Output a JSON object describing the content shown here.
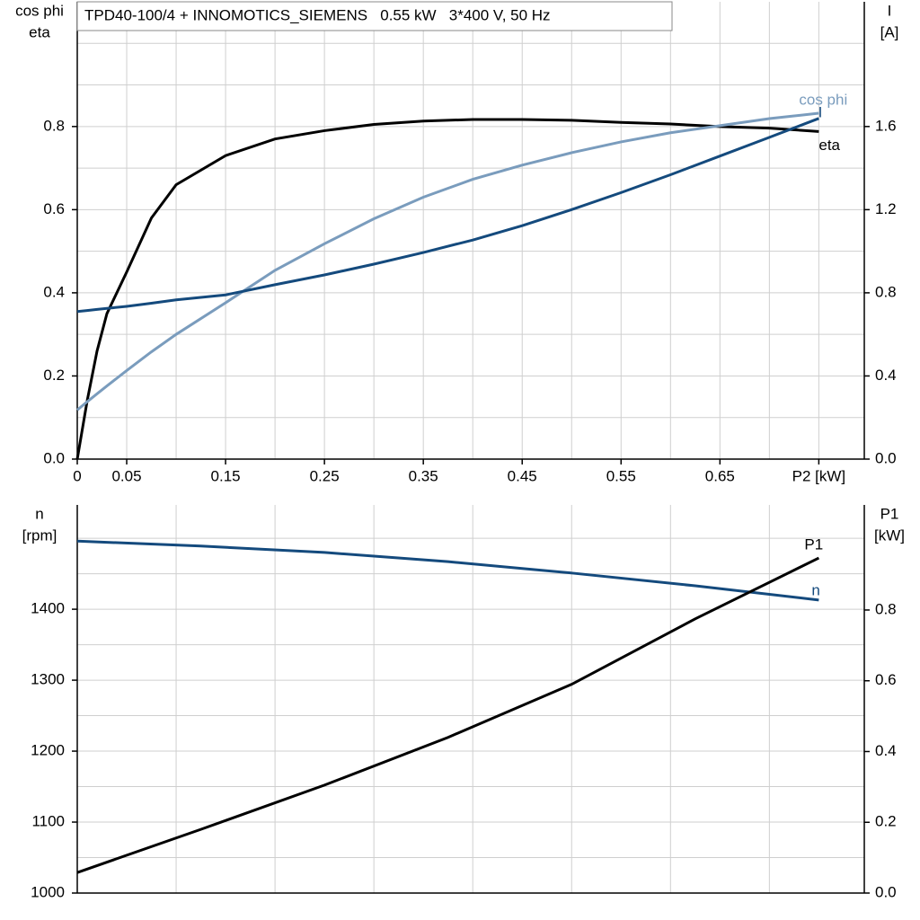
{
  "chart_data": [
    {
      "type": "line",
      "title": "TPD40-100/4 + INNOMOTICS_SIEMENS   0.55 kW   3*400 V, 50 Hz",
      "ylabel": [
        "cos phi",
        "eta"
      ],
      "y2label": [
        "I",
        "[A]"
      ],
      "x": [
        0,
        0.01,
        0.02,
        0.03,
        0.05,
        0.075,
        0.1,
        0.15,
        0.2,
        0.25,
        0.3,
        0.35,
        0.4,
        0.45,
        0.5,
        0.55,
        0.6,
        0.65,
        0.7,
        0.75
      ],
      "xlim": [
        0,
        0.796
      ],
      "xticks": [
        0,
        0.05,
        0.15,
        0.25,
        0.35,
        0.45,
        0.55,
        0.65,
        {
          "value": 0.75,
          "label": "P2 [kW]"
        }
      ],
      "xgrid": [
        0.05,
        0.1,
        0.15,
        0.2,
        0.25,
        0.3,
        0.35,
        0.4,
        0.45,
        0.5,
        0.55,
        0.6,
        0.65,
        0.7,
        0.75
      ],
      "ylim": [
        0,
        1.1
      ],
      "yticks": [
        {
          "value": 0,
          "label": "0.0"
        },
        0.2,
        0.4,
        0.6,
        0.8
      ],
      "ygrid": [
        0.1,
        0.2,
        0.3,
        0.4,
        0.5,
        0.6,
        0.7,
        0.8,
        0.9,
        1.0
      ],
      "y2lim": [
        0,
        2.2
      ],
      "y2ticks": [
        {
          "value": 0,
          "label": "0.0"
        },
        0.4,
        0.8,
        1.2,
        1.6
      ],
      "series": [
        {
          "name": "eta",
          "color": "#000000",
          "values": [
            0,
            0.14,
            0.26,
            0.35,
            0.45,
            0.58,
            0.66,
            0.73,
            0.77,
            0.79,
            0.805,
            0.813,
            0.817,
            0.817,
            0.815,
            0.81,
            0.806,
            0.8,
            0.796,
            0.788
          ]
        },
        {
          "name": "cos phi",
          "color": "#7a9cbd",
          "values": [
            0.118,
            0.138,
            0.157,
            0.176,
            0.213,
            0.258,
            0.3,
            0.376,
            0.454,
            0.518,
            0.578,
            0.63,
            0.673,
            0.707,
            0.737,
            0.763,
            0.785,
            0.802,
            0.819,
            0.832
          ]
        },
        {
          "name": "I",
          "color": "#144a7d",
          "axis": "y2",
          "values": [
            0.71,
            0.715,
            0.72,
            0.725,
            0.735,
            0.75,
            0.766,
            0.79,
            0.839,
            0.886,
            0.938,
            0.994,
            1.054,
            1.123,
            1.2,
            1.282,
            1.368,
            1.458,
            1.548,
            1.639
          ]
        }
      ]
    },
    {
      "type": "line",
      "ylabel": [
        "n",
        "[rpm]"
      ],
      "y2label": [
        "P1",
        "[kW]"
      ],
      "x": [
        0,
        0.125,
        0.25,
        0.375,
        0.5,
        0.625,
        0.75
      ],
      "xlim": [
        0,
        0.796
      ],
      "xgrid": [
        0.1,
        0.2,
        0.3,
        0.4,
        0.5,
        0.6,
        0.7
      ],
      "ylim": [
        1000,
        1547
      ],
      "yticks": [
        1000,
        1100,
        1200,
        1300,
        1400
      ],
      "ygrid": [
        1050,
        1100,
        1150,
        1200,
        1250,
        1300,
        1350,
        1400,
        1450,
        1500
      ],
      "y2lim": [
        0,
        1.097
      ],
      "y2ticks": [
        {
          "value": 0,
          "label": "0.0"
        },
        0.2,
        0.4,
        0.6,
        0.8
      ],
      "series": [
        {
          "name": "n",
          "color": "#144a7d",
          "values": [
            1496,
            1489,
            1480,
            1467,
            1451,
            1433,
            1413
          ]
        },
        {
          "name": "P1",
          "color": "#000000",
          "axis": "y2",
          "values": [
            0.058,
            0.18,
            0.305,
            0.44,
            0.59,
            0.775,
            0.947
          ]
        }
      ]
    }
  ]
}
